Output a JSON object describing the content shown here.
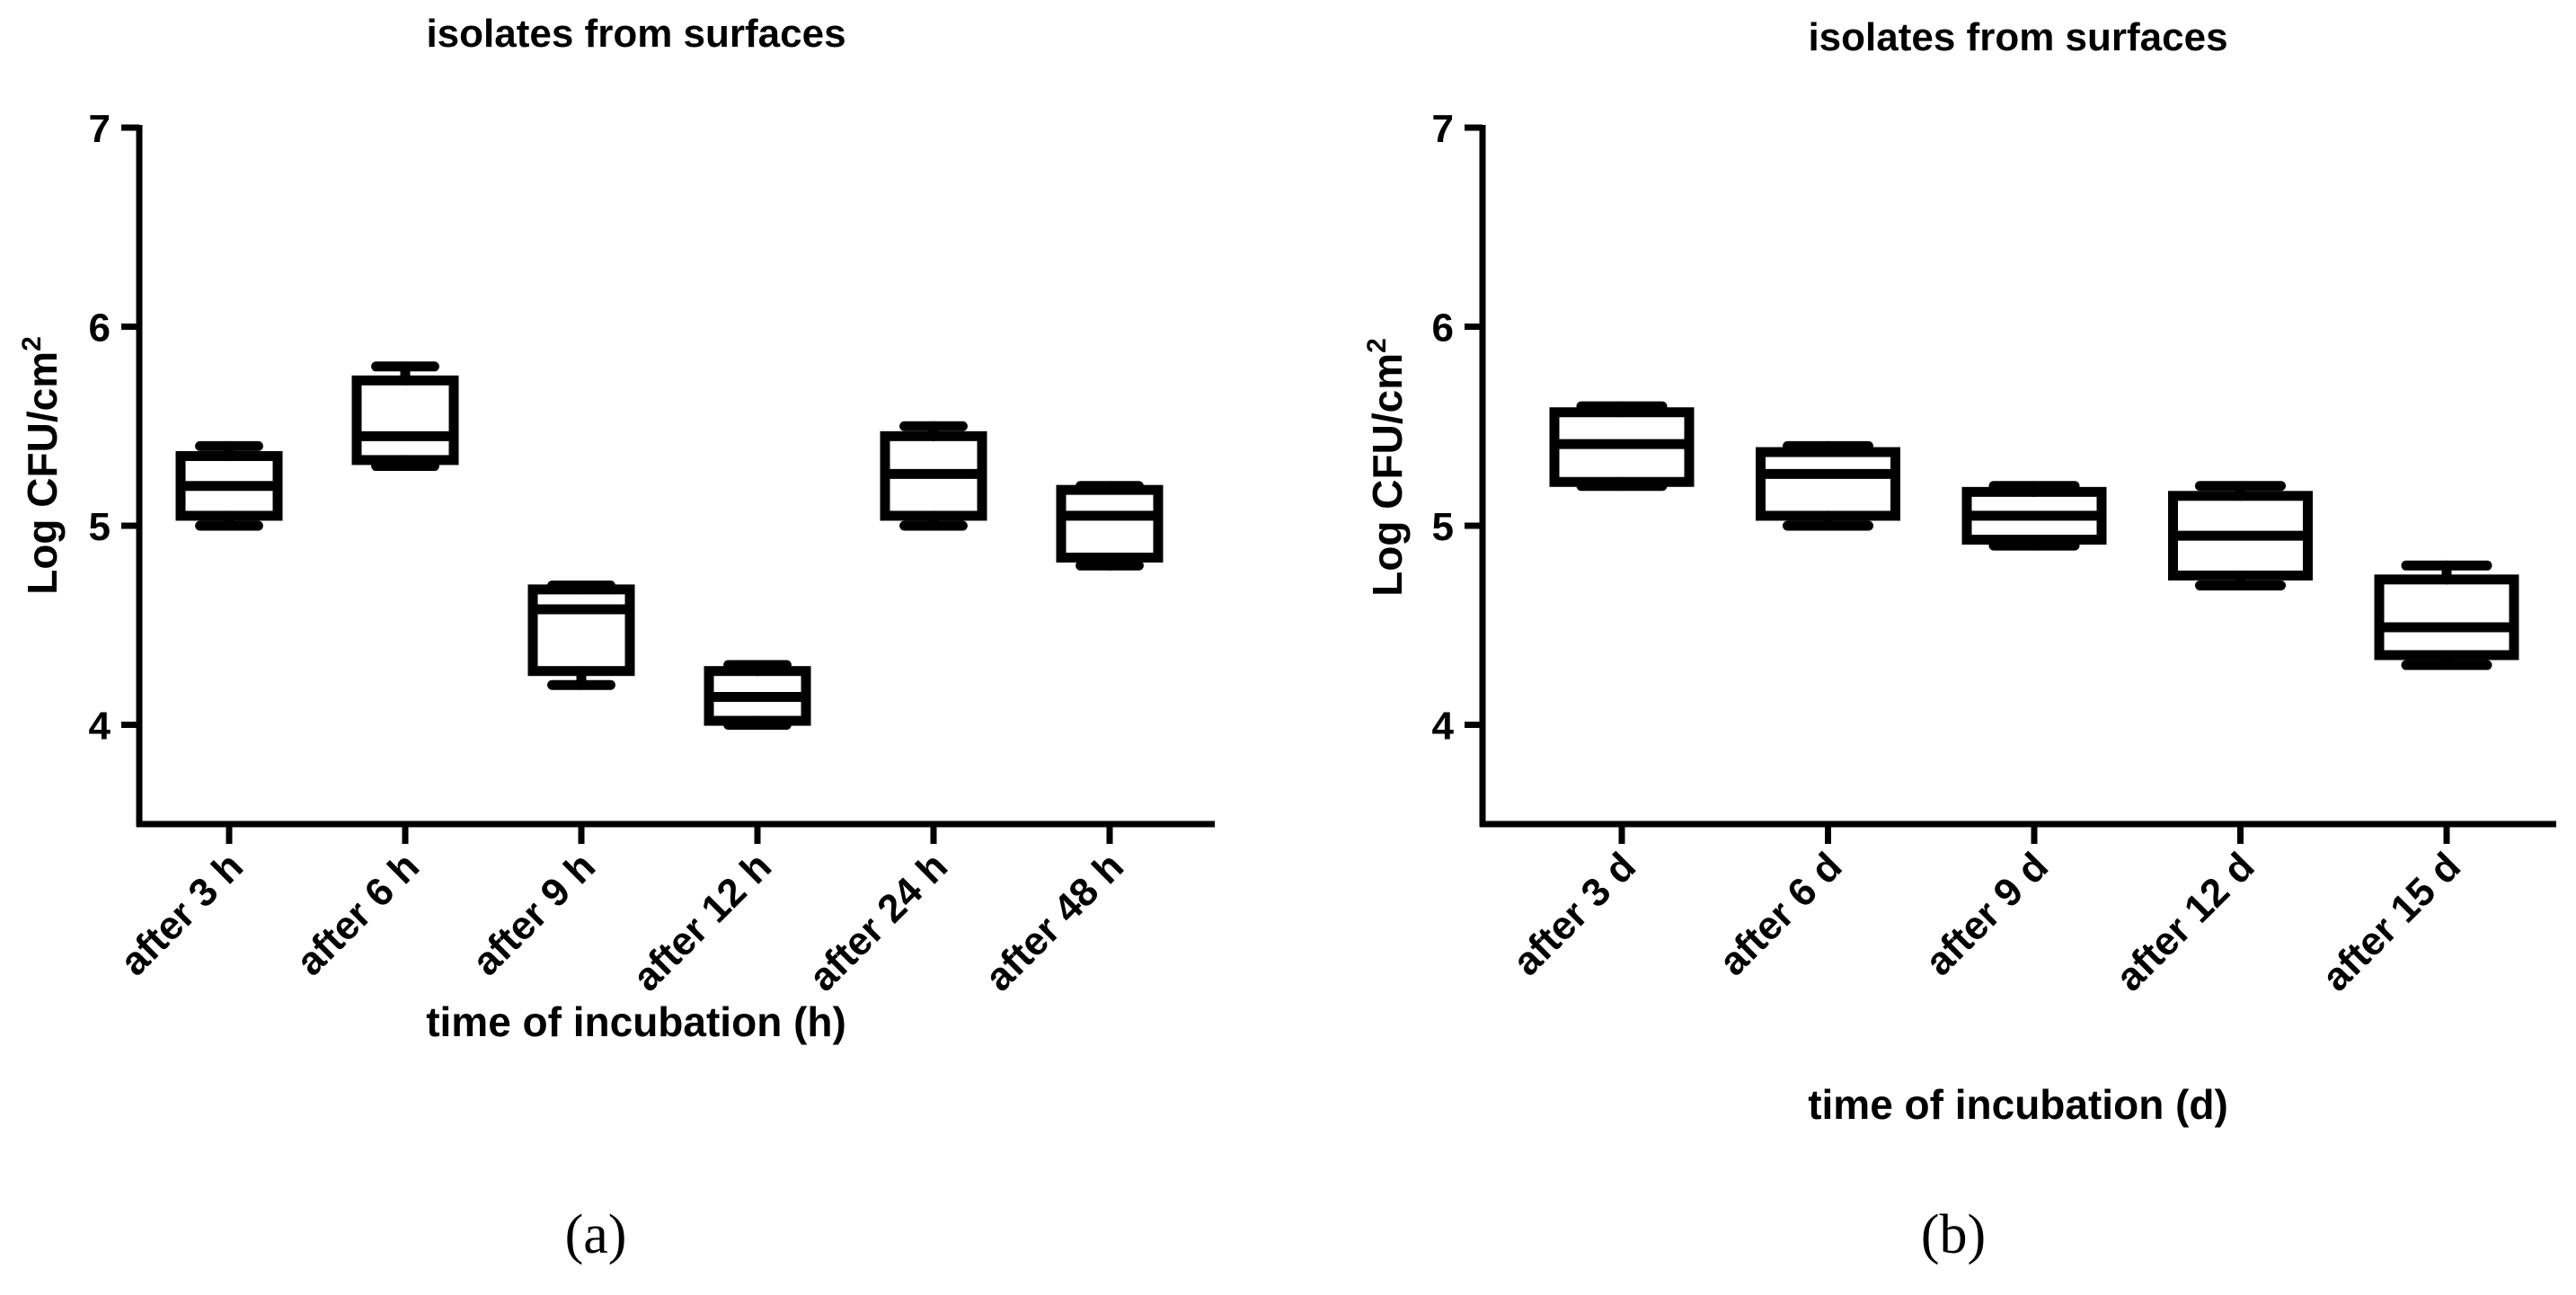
{
  "chart_data": [
    {
      "type": "box",
      "panel_label": "(a)",
      "title": "isolates from surfaces",
      "xlabel": "time of incubation (h)",
      "ylabel": "Log CFU/cm",
      "ylabel_sup": "2",
      "ylim": [
        3.5,
        7
      ],
      "yticks": [
        "4",
        "5",
        "6",
        "7"
      ],
      "categories": [
        "after 3 h",
        "after 6 h",
        "after 9 h",
        "after 12 h",
        "after 24 h",
        "after 48 h"
      ],
      "boxes": [
        {
          "min": 5.0,
          "q1": 5.05,
          "median": 5.2,
          "q3": 5.35,
          "max": 5.4
        },
        {
          "min": 5.3,
          "q1": 5.33,
          "median": 5.45,
          "q3": 5.73,
          "max": 5.8
        },
        {
          "min": 4.2,
          "q1": 4.27,
          "median": 4.58,
          "q3": 4.68,
          "max": 4.7
        },
        {
          "min": 4.0,
          "q1": 4.02,
          "median": 4.14,
          "q3": 4.27,
          "max": 4.3
        },
        {
          "min": 5.0,
          "q1": 5.05,
          "median": 5.26,
          "q3": 5.45,
          "max": 5.5
        },
        {
          "min": 4.8,
          "q1": 4.84,
          "median": 5.05,
          "q3": 5.18,
          "max": 5.2
        }
      ]
    },
    {
      "type": "box",
      "panel_label": "(b)",
      "title": "isolates from surfaces",
      "xlabel": "time of incubation (d)",
      "ylabel": "Log CFU/cm",
      "ylabel_sup": "2",
      "ylim": [
        3.5,
        7
      ],
      "yticks": [
        "4",
        "5",
        "6",
        "7"
      ],
      "categories": [
        "after 3 d",
        "after 6 d",
        "after 9 d",
        "after 12 d",
        "after 15 d"
      ],
      "boxes": [
        {
          "min": 5.2,
          "q1": 5.22,
          "median": 5.41,
          "q3": 5.57,
          "max": 5.6
        },
        {
          "min": 5.0,
          "q1": 5.05,
          "median": 5.26,
          "q3": 5.37,
          "max": 5.4
        },
        {
          "min": 4.9,
          "q1": 4.93,
          "median": 5.05,
          "q3": 5.17,
          "max": 5.2
        },
        {
          "min": 4.7,
          "q1": 4.75,
          "median": 4.95,
          "q3": 5.15,
          "max": 5.2
        },
        {
          "min": 4.3,
          "q1": 4.35,
          "median": 4.49,
          "q3": 4.73,
          "max": 4.8
        }
      ]
    }
  ]
}
